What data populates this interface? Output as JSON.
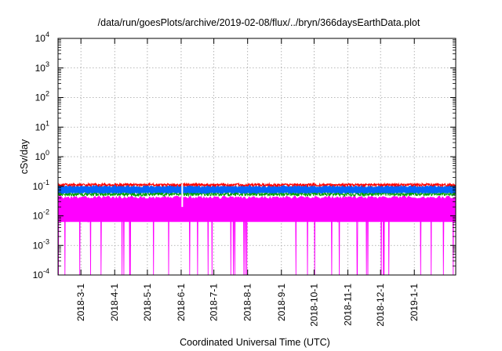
{
  "chart_data": {
    "type": "line",
    "title": "/data/run/goesPlots/archive/2019-02-08/flux/../bryn/366daysEarthData.plot",
    "xlabel": "Coordinated Universal Time (UTC)",
    "ylabel": "cSv/day",
    "yscale": "log",
    "ylim": [
      0.0001,
      10000
    ],
    "xlim": [
      "2018-02-08",
      "2019-02-08"
    ],
    "y_ticks": [
      {
        "value": 0.0001,
        "base": "10",
        "exp": "-4"
      },
      {
        "value": 0.001,
        "base": "10",
        "exp": "-3"
      },
      {
        "value": 0.01,
        "base": "10",
        "exp": "-2"
      },
      {
        "value": 0.1,
        "base": "10",
        "exp": "-1"
      },
      {
        "value": 1,
        "base": "10",
        "exp": "0"
      },
      {
        "value": 10,
        "base": "10",
        "exp": "1"
      },
      {
        "value": 100,
        "base": "10",
        "exp": "2"
      },
      {
        "value": 1000,
        "base": "10",
        "exp": "3"
      },
      {
        "value": 10000,
        "base": "10",
        "exp": "4"
      }
    ],
    "x_ticks": [
      {
        "date": "2018-03-01",
        "label": "2018-3-1"
      },
      {
        "date": "2018-04-01",
        "label": "2018-4-1"
      },
      {
        "date": "2018-05-01",
        "label": "2018-5-1"
      },
      {
        "date": "2018-06-01",
        "label": "2018-6-1"
      },
      {
        "date": "2018-07-01",
        "label": "2018-7-1"
      },
      {
        "date": "2018-08-01",
        "label": "2018-8-1"
      },
      {
        "date": "2018-09-01",
        "label": "2018-9-1"
      },
      {
        "date": "2018-10-01",
        "label": "2018-10-1"
      },
      {
        "date": "2018-11-01",
        "label": "2018-11-1"
      },
      {
        "date": "2018-12-01",
        "label": "2018-12-1"
      },
      {
        "date": "2019-01-01",
        "label": "2019-1-1"
      }
    ],
    "grid": true,
    "series": [
      {
        "color": "#ff00ff",
        "typical_range": [
          0.006,
          0.04
        ],
        "dips_to": 0.0001
      },
      {
        "color": "#00a000",
        "typical": 0.055
      },
      {
        "color": "#0066ff",
        "typical_range": [
          0.06,
          0.1
        ]
      },
      {
        "color": "#ff0000",
        "typical": 0.11
      }
    ]
  }
}
